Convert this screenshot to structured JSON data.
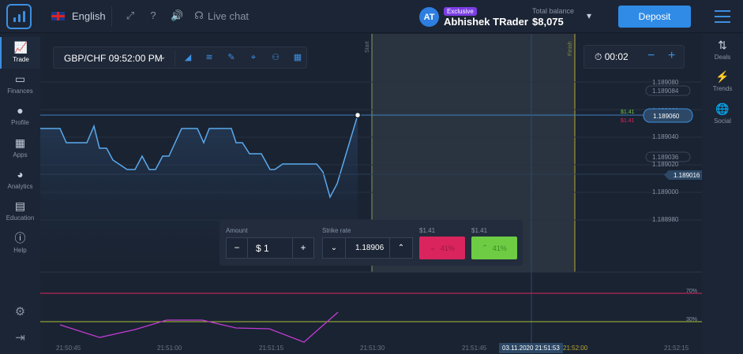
{
  "topbar": {
    "language": "English",
    "live_chat": "Live chat",
    "user_initials": "AT",
    "user_badge": "Exclusive",
    "user_name": "Abhishek TRader",
    "balance_label": "Total balance",
    "balance_value": "$8,075",
    "deposit_label": "Deposit"
  },
  "left_nav": [
    {
      "label": "Trade",
      "icon": "chart-line-icon"
    },
    {
      "label": "Finances",
      "icon": "wallet-icon"
    },
    {
      "label": "Profile",
      "icon": "user-icon"
    },
    {
      "label": "Apps",
      "icon": "grid-icon"
    },
    {
      "label": "Analytics",
      "icon": "pie-icon"
    },
    {
      "label": "Education",
      "icon": "book-icon"
    },
    {
      "label": "Help",
      "icon": "info-icon"
    }
  ],
  "right_nav": [
    {
      "label": "Deals",
      "icon": "arrows-icon"
    },
    {
      "label": "Trends",
      "icon": "bolt-icon"
    },
    {
      "label": "Social",
      "icon": "globe-icon"
    }
  ],
  "toolbar": {
    "pair": "GBP/CHF 09:52:00 PM"
  },
  "timer": {
    "value": "00:02"
  },
  "chart_markers": {
    "start": "Start",
    "finish": "Finish"
  },
  "price_levels": [
    "1.189080",
    "1.189084",
    "1.189060",
    "1.189040",
    "1.189036",
    "1.189020",
    "1.189000",
    "1.188980"
  ],
  "current_price": "1.189060",
  "live_price": "1.189016",
  "payout_up": "$1.41",
  "payout_down": "$1.41",
  "oscillator_levels": [
    "70%",
    "30%"
  ],
  "time_axis": [
    "21:50:45",
    "21:51:00",
    "21:51:15",
    "21:51:30",
    "21:51:45",
    "21:52:15"
  ],
  "time_cursor": "03.11.2020 21:51:53",
  "time_finish": "21:52:00",
  "trade": {
    "amount_label": "Amount",
    "amount_value": "$ 1",
    "strike_label": "Strike rate",
    "strike_value": "1.18906",
    "down_payout": "$1.41",
    "up_payout": "$1.41",
    "down_pct": "41%",
    "up_pct": "41%"
  },
  "colors": {
    "accent": "#2f8be6",
    "up": "#6dcc44",
    "down": "#d9245d",
    "line": "#5aa9ec",
    "oscillator": "#c23bd4"
  }
}
